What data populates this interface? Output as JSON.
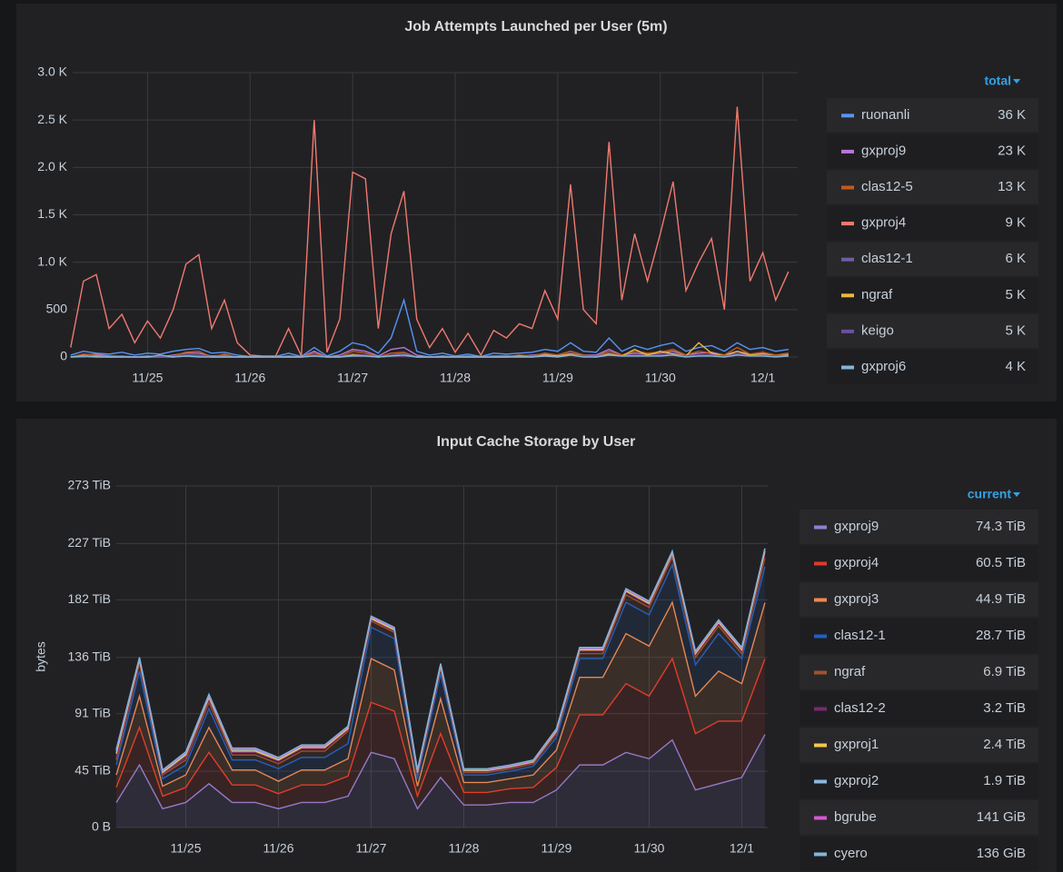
{
  "chart_data": [
    {
      "type": "line",
      "title": "Job Attempts Launched per User (5m)",
      "x": [
        24.25,
        24.375,
        24.5,
        24.625,
        24.75,
        24.875,
        25,
        25.125,
        25.25,
        25.375,
        25.5,
        25.625,
        25.75,
        25.875,
        26,
        26.125,
        26.25,
        26.375,
        26.5,
        26.625,
        26.75,
        26.875,
        27,
        27.125,
        27.25,
        27.375,
        27.5,
        27.625,
        27.75,
        27.875,
        28,
        28.125,
        28.25,
        28.375,
        28.5,
        28.625,
        28.75,
        28.875,
        29,
        29.125,
        29.25,
        29.375,
        29.5,
        29.625,
        29.75,
        29.875,
        30,
        30.125,
        30.25,
        30.375,
        30.5,
        30.625,
        30.75,
        30.875,
        31,
        31.125,
        31.25
      ],
      "xlim": [
        24.27,
        31.34
      ],
      "xticks": [
        {
          "value": 25,
          "label": "11/25"
        },
        {
          "value": 26,
          "label": "11/26"
        },
        {
          "value": 27,
          "label": "11/27"
        },
        {
          "value": 28,
          "label": "11/28"
        },
        {
          "value": 29,
          "label": "11/29"
        },
        {
          "value": 30,
          "label": "11/30"
        },
        {
          "value": 31,
          "label": "12/1"
        }
      ],
      "ylim": [
        0,
        3000
      ],
      "yticks": [
        0,
        500,
        {
          "value": 1000,
          "label": "1.0 K"
        },
        {
          "value": 1500,
          "label": "1.5 K"
        },
        {
          "value": 2000,
          "label": "2.0 K"
        },
        {
          "value": 2500,
          "label": "2.5 K"
        },
        {
          "value": 3000,
          "label": "3.0 K"
        }
      ],
      "grid": true,
      "legend_header": "total",
      "legend_values": [
        36000,
        23000,
        13000,
        9000,
        6000,
        5000,
        5000,
        4000
      ],
      "legend_value_labels": [
        "36 K",
        "23 K",
        "13 K",
        "9 K",
        "6 K",
        "5 K",
        "5 K",
        "4 K"
      ],
      "series": [
        {
          "name": "ruonanli",
          "color": "#5794f2",
          "values": [
            20,
            60,
            40,
            30,
            50,
            20,
            40,
            30,
            60,
            80,
            90,
            40,
            50,
            20,
            5,
            5,
            5,
            40,
            5,
            100,
            10,
            60,
            150,
            120,
            40,
            200,
            600,
            60,
            20,
            40,
            10,
            30,
            5,
            40,
            30,
            40,
            50,
            80,
            60,
            150,
            60,
            50,
            200,
            60,
            120,
            80,
            120,
            150,
            60,
            100,
            120,
            60,
            150,
            80,
            100,
            60,
            80
          ]
        },
        {
          "name": "gxproj9",
          "color": "#b877d9",
          "values": [
            0,
            20,
            30,
            10,
            10,
            0,
            10,
            0,
            20,
            40,
            40,
            10,
            20,
            0,
            0,
            0,
            0,
            10,
            0,
            60,
            0,
            20,
            80,
            60,
            10,
            80,
            100,
            20,
            0,
            10,
            0,
            10,
            0,
            10,
            10,
            10,
            20,
            30,
            20,
            60,
            20,
            20,
            80,
            20,
            40,
            30,
            40,
            60,
            20,
            40,
            50,
            20,
            60,
            30,
            40,
            20,
            30
          ]
        },
        {
          "name": "clas12-5",
          "color": "#c15c17",
          "values": [
            0,
            30,
            20,
            0,
            10,
            0,
            0,
            0,
            10,
            50,
            60,
            0,
            30,
            0,
            0,
            0,
            0,
            0,
            0,
            40,
            0,
            0,
            60,
            40,
            0,
            40,
            50,
            0,
            0,
            0,
            0,
            0,
            0,
            0,
            0,
            20,
            10,
            40,
            20,
            60,
            20,
            10,
            60,
            20,
            60,
            40,
            50,
            80,
            20,
            60,
            40,
            20,
            100,
            30,
            50,
            20,
            40
          ]
        },
        {
          "name": "gxproj4",
          "color": "#f07a6e",
          "values": [
            100,
            800,
            870,
            300,
            450,
            150,
            380,
            200,
            500,
            980,
            1080,
            300,
            600,
            150,
            20,
            10,
            10,
            300,
            10,
            2500,
            50,
            400,
            1950,
            1880,
            300,
            1300,
            1750,
            400,
            100,
            300,
            50,
            250,
            20,
            280,
            200,
            350,
            300,
            700,
            400,
            1820,
            500,
            350,
            2270,
            600,
            1300,
            800,
            1300,
            1850,
            700,
            1000,
            1250,
            500,
            2640,
            800,
            1100,
            600,
            900
          ]
        },
        {
          "name": "clas12-1",
          "color": "#705da0",
          "values": [
            0,
            10,
            10,
            0,
            10,
            0,
            0,
            0,
            10,
            20,
            20,
            0,
            10,
            0,
            0,
            0,
            0,
            0,
            0,
            20,
            0,
            0,
            30,
            20,
            0,
            20,
            40,
            0,
            0,
            0,
            0,
            0,
            0,
            0,
            0,
            10,
            10,
            20,
            10,
            40,
            10,
            10,
            40,
            10,
            20,
            20,
            20,
            40,
            10,
            20,
            30,
            10,
            40,
            20,
            20,
            10,
            20
          ]
        },
        {
          "name": "ngraf",
          "color": "#eab839",
          "values": [
            0,
            0,
            10,
            0,
            0,
            0,
            0,
            0,
            0,
            10,
            10,
            0,
            0,
            0,
            0,
            0,
            0,
            0,
            0,
            10,
            0,
            0,
            20,
            10,
            0,
            10,
            20,
            0,
            0,
            0,
            0,
            0,
            0,
            0,
            0,
            10,
            0,
            20,
            10,
            30,
            10,
            0,
            30,
            10,
            80,
            20,
            60,
            30,
            10,
            150,
            40,
            10,
            60,
            20,
            30,
            10,
            20
          ]
        },
        {
          "name": "keigo",
          "color": "#6b4fa0",
          "values": [
            0,
            0,
            0,
            0,
            0,
            0,
            0,
            0,
            0,
            10,
            10,
            0,
            0,
            0,
            0,
            0,
            0,
            0,
            0,
            10,
            0,
            0,
            10,
            10,
            0,
            10,
            10,
            0,
            0,
            0,
            0,
            0,
            0,
            0,
            0,
            0,
            0,
            10,
            0,
            20,
            10,
            0,
            20,
            10,
            20,
            10,
            20,
            20,
            10,
            20,
            20,
            10,
            30,
            10,
            20,
            10,
            10
          ]
        },
        {
          "name": "gxproj6",
          "color": "#82b5d8",
          "values": [
            0,
            10,
            0,
            0,
            0,
            0,
            0,
            20,
            0,
            10,
            0,
            0,
            0,
            0,
            0,
            0,
            0,
            0,
            0,
            10,
            0,
            0,
            10,
            10,
            0,
            10,
            20,
            0,
            0,
            0,
            0,
            0,
            0,
            0,
            0,
            0,
            0,
            10,
            0,
            20,
            0,
            0,
            20,
            10,
            10,
            10,
            10,
            20,
            0,
            10,
            10,
            0,
            20,
            10,
            10,
            0,
            10
          ]
        }
      ]
    },
    {
      "type": "area",
      "stacked": true,
      "title": "Input Cache Storage by User",
      "ylabel": "bytes",
      "x": [
        24.25,
        24.5,
        24.75,
        25,
        25.25,
        25.5,
        25.75,
        26,
        26.25,
        26.5,
        26.75,
        27,
        27.25,
        27.5,
        27.75,
        28,
        28.25,
        28.5,
        28.75,
        29,
        29.25,
        29.5,
        29.75,
        30,
        30.25,
        30.5,
        30.75,
        31,
        31.25
      ],
      "xlim": [
        24.25,
        31.28
      ],
      "xticks": [
        {
          "value": 25,
          "label": "11/25"
        },
        {
          "value": 26,
          "label": "11/26"
        },
        {
          "value": 27,
          "label": "11/27"
        },
        {
          "value": 28,
          "label": "11/28"
        },
        {
          "value": 29,
          "label": "11/29"
        },
        {
          "value": 30,
          "label": "11/30"
        },
        {
          "value": 31,
          "label": "12/1"
        }
      ],
      "ylim": [
        0,
        273
      ],
      "yticks": [
        {
          "value": 0,
          "label": "0 B"
        },
        {
          "value": 45,
          "label": "45 TiB"
        },
        {
          "value": 91,
          "label": "91 TiB"
        },
        {
          "value": 136,
          "label": "136 TiB"
        },
        {
          "value": 182,
          "label": "182 TiB"
        },
        {
          "value": 227,
          "label": "227 TiB"
        },
        {
          "value": 273,
          "label": "273 TiB"
        }
      ],
      "grid": true,
      "legend_header": "current",
      "legend_values": [
        74.3,
        60.5,
        44.9,
        28.7,
        6.9,
        3.2,
        2.4,
        1.9,
        0.1377,
        0.1328
      ],
      "legend_value_labels": [
        "74.3 TiB",
        "60.5 TiB",
        "44.9 TiB",
        "28.7 TiB",
        "6.9 TiB",
        "3.2 TiB",
        "2.4 TiB",
        "1.9 TiB",
        "141 GiB",
        "136 GiB"
      ],
      "series": [
        {
          "name": "gxproj9",
          "color": "#8f7fd1",
          "values": [
            20,
            50,
            15,
            20,
            35,
            20,
            20,
            15,
            20,
            20,
            25,
            60,
            55,
            15,
            40,
            18,
            18,
            20,
            20,
            30,
            50,
            50,
            60,
            55,
            70,
            30,
            35,
            40,
            74.3
          ]
        },
        {
          "name": "gxproj4",
          "color": "#e0392b",
          "values": [
            12,
            30,
            10,
            12,
            25,
            14,
            14,
            12,
            14,
            14,
            16,
            40,
            38,
            10,
            35,
            10,
            10,
            11,
            12,
            18,
            40,
            40,
            55,
            50,
            65,
            45,
            50,
            45,
            60.5
          ]
        },
        {
          "name": "gxproj3",
          "color": "#f2894e",
          "values": [
            10,
            25,
            8,
            10,
            20,
            12,
            12,
            10,
            12,
            12,
            14,
            35,
            33,
            8,
            28,
            8,
            8,
            8,
            10,
            14,
            30,
            30,
            40,
            40,
            45,
            30,
            40,
            30,
            44.9
          ]
        },
        {
          "name": "clas12-1",
          "color": "#1f60c4",
          "values": [
            8,
            20,
            6,
            8,
            15,
            8,
            8,
            10,
            10,
            10,
            12,
            25,
            25,
            6,
            20,
            6,
            6,
            6,
            7,
            10,
            15,
            15,
            25,
            25,
            30,
            25,
            30,
            20,
            28.7
          ]
        },
        {
          "name": "ngraf",
          "color": "#a0522d",
          "values": [
            4,
            6,
            3,
            4,
            5,
            4,
            4,
            4,
            5,
            5,
            10,
            5,
            5,
            3,
            4,
            2,
            2,
            2,
            2,
            3,
            4,
            4,
            6,
            6,
            6,
            6,
            6,
            4,
            6.9
          ]
        },
        {
          "name": "clas12-2",
          "color": "#7a2a6e",
          "values": [
            2,
            2,
            1,
            2,
            2,
            2,
            2,
            2,
            2,
            2,
            1,
            1,
            1,
            1,
            1,
            1,
            1,
            1,
            1,
            1,
            2,
            2,
            2,
            2,
            2,
            2,
            2,
            2,
            3.2
          ]
        },
        {
          "name": "gxproj1",
          "color": "#f2c94c",
          "values": [
            3,
            1,
            1,
            2,
            2,
            1,
            1,
            1,
            1,
            1,
            1,
            1,
            1,
            1,
            1,
            0.5,
            0.5,
            0.5,
            0.5,
            1,
            1,
            1,
            1,
            1,
            1,
            1,
            1,
            1,
            2.4
          ]
        },
        {
          "name": "gxproj2",
          "color": "#8ab8e0",
          "values": [
            2,
            1,
            1,
            1,
            1,
            1,
            1,
            1,
            1,
            1,
            1,
            1,
            1,
            1,
            1,
            0.5,
            0.5,
            0.5,
            0.5,
            1,
            1,
            1,
            1,
            1,
            1,
            1,
            1,
            1,
            1.9
          ]
        },
        {
          "name": "bgrube",
          "color": "#d35ad0",
          "values": [
            1,
            0.5,
            0.5,
            1,
            1,
            1,
            1,
            0.5,
            0.5,
            0.5,
            0.5,
            0.5,
            0.5,
            0.5,
            0.5,
            0.5,
            0.5,
            0.5,
            0.5,
            0.5,
            0.5,
            0.5,
            0.5,
            0.5,
            0.5,
            0.5,
            0.5,
            0.5,
            0.14
          ]
        },
        {
          "name": "cyero",
          "color": "#82b5d8",
          "values": [
            0.5,
            0.5,
            0.5,
            0.5,
            0.5,
            0.5,
            0.5,
            0.5,
            0.5,
            0.5,
            0.5,
            0.5,
            0.5,
            0.5,
            0.5,
            0.5,
            0.5,
            0.5,
            0.5,
            0.5,
            0.5,
            0.5,
            0.5,
            0.5,
            0.5,
            0.5,
            0.5,
            0.5,
            0.13
          ]
        }
      ]
    }
  ]
}
